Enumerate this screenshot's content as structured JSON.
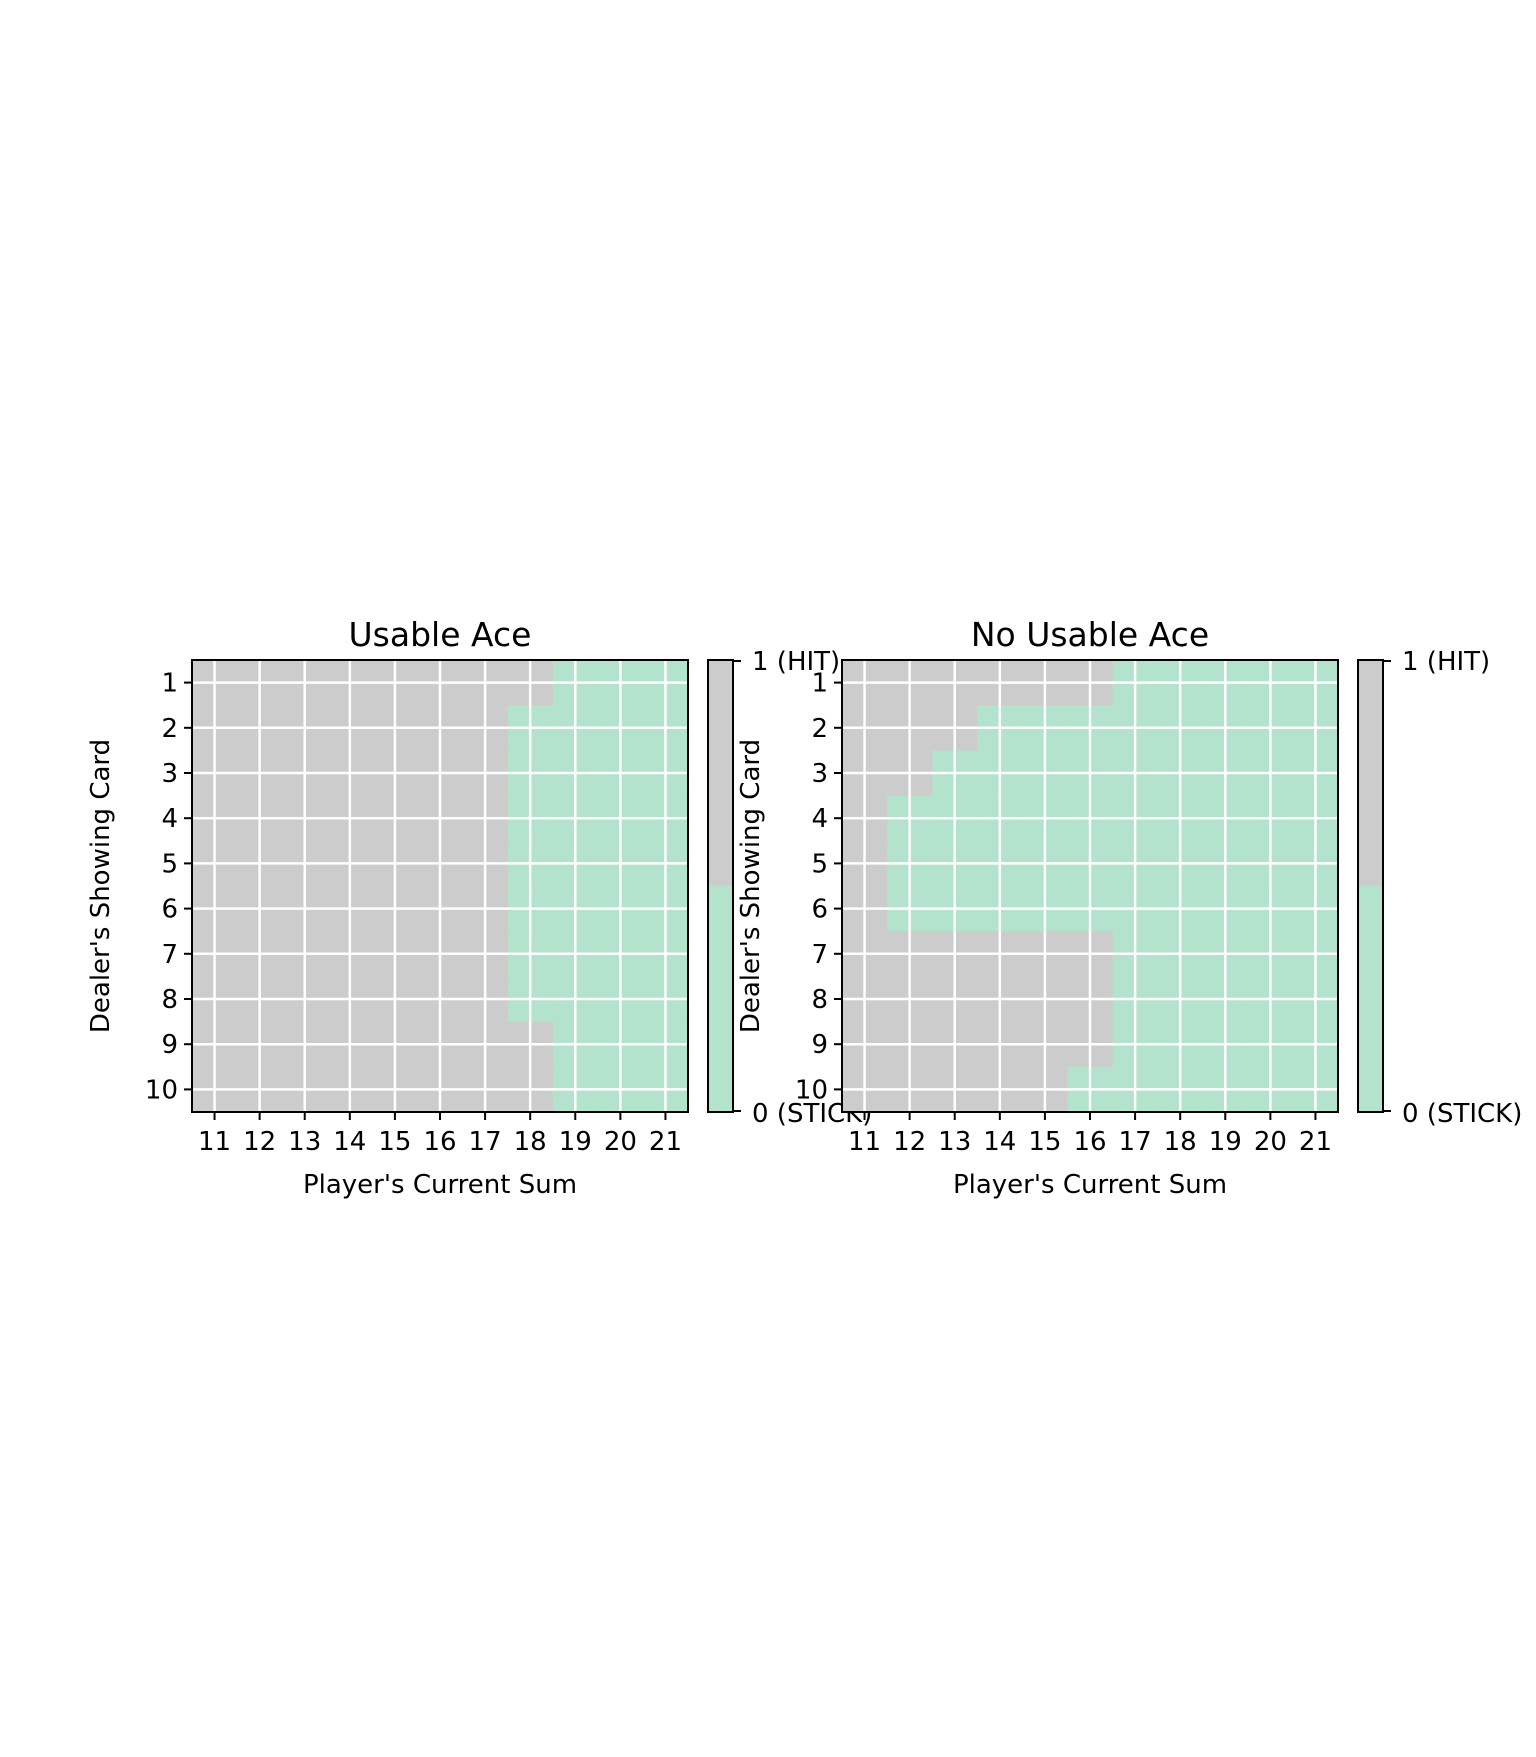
{
  "colors": {
    "hit": "#cccccc",
    "stick": "#b3e2cd",
    "grid": "#ffffff",
    "frame": "#000000"
  },
  "chart_data": [
    {
      "type": "heatmap",
      "title": "Usable Ace",
      "xlabel": "Player's Current Sum",
      "ylabel": "Dealer's Showing Card",
      "x": [
        11,
        12,
        13,
        14,
        15,
        16,
        17,
        18,
        19,
        20,
        21
      ],
      "y": [
        1,
        2,
        3,
        4,
        5,
        6,
        7,
        8,
        9,
        10
      ],
      "value_meaning": {
        "1": "1 (HIT)",
        "0": "0 (STICK)"
      },
      "z": [
        [
          1,
          1,
          1,
          1,
          1,
          1,
          1,
          1,
          0,
          0,
          0
        ],
        [
          1,
          1,
          1,
          1,
          1,
          1,
          1,
          0,
          0,
          0,
          0
        ],
        [
          1,
          1,
          1,
          1,
          1,
          1,
          1,
          0,
          0,
          0,
          0
        ],
        [
          1,
          1,
          1,
          1,
          1,
          1,
          1,
          0,
          0,
          0,
          0
        ],
        [
          1,
          1,
          1,
          1,
          1,
          1,
          1,
          0,
          0,
          0,
          0
        ],
        [
          1,
          1,
          1,
          1,
          1,
          1,
          1,
          0,
          0,
          0,
          0
        ],
        [
          1,
          1,
          1,
          1,
          1,
          1,
          1,
          0,
          0,
          0,
          0
        ],
        [
          1,
          1,
          1,
          1,
          1,
          1,
          1,
          0,
          0,
          0,
          0
        ],
        [
          1,
          1,
          1,
          1,
          1,
          1,
          1,
          1,
          0,
          0,
          0
        ],
        [
          1,
          1,
          1,
          1,
          1,
          1,
          1,
          1,
          0,
          0,
          0
        ]
      ],
      "colorbar": {
        "ticks": [
          "1 (HIT)",
          "0 (STICK)"
        ]
      },
      "grid": true
    },
    {
      "type": "heatmap",
      "title": "No Usable Ace",
      "xlabel": "Player's Current Sum",
      "ylabel": "Dealer's Showing Card",
      "x": [
        11,
        12,
        13,
        14,
        15,
        16,
        17,
        18,
        19,
        20,
        21
      ],
      "y": [
        1,
        2,
        3,
        4,
        5,
        6,
        7,
        8,
        9,
        10
      ],
      "value_meaning": {
        "1": "1 (HIT)",
        "0": "0 (STICK)"
      },
      "z": [
        [
          1,
          1,
          1,
          1,
          1,
          1,
          0,
          0,
          0,
          0,
          0
        ],
        [
          1,
          1,
          1,
          0,
          0,
          0,
          0,
          0,
          0,
          0,
          0
        ],
        [
          1,
          1,
          0,
          0,
          0,
          0,
          0,
          0,
          0,
          0,
          0
        ],
        [
          1,
          0,
          0,
          0,
          0,
          0,
          0,
          0,
          0,
          0,
          0
        ],
        [
          1,
          0,
          0,
          0,
          0,
          0,
          0,
          0,
          0,
          0,
          0
        ],
        [
          1,
          0,
          0,
          0,
          0,
          0,
          0,
          0,
          0,
          0,
          0
        ],
        [
          1,
          1,
          1,
          1,
          1,
          1,
          0,
          0,
          0,
          0,
          0
        ],
        [
          1,
          1,
          1,
          1,
          1,
          1,
          0,
          0,
          0,
          0,
          0
        ],
        [
          1,
          1,
          1,
          1,
          1,
          1,
          0,
          0,
          0,
          0,
          0
        ],
        [
          1,
          1,
          1,
          1,
          1,
          0,
          0,
          0,
          0,
          0,
          0
        ]
      ],
      "colorbar": {
        "ticks": [
          "1 (HIT)",
          "0 (STICK)"
        ]
      },
      "grid": true
    }
  ]
}
